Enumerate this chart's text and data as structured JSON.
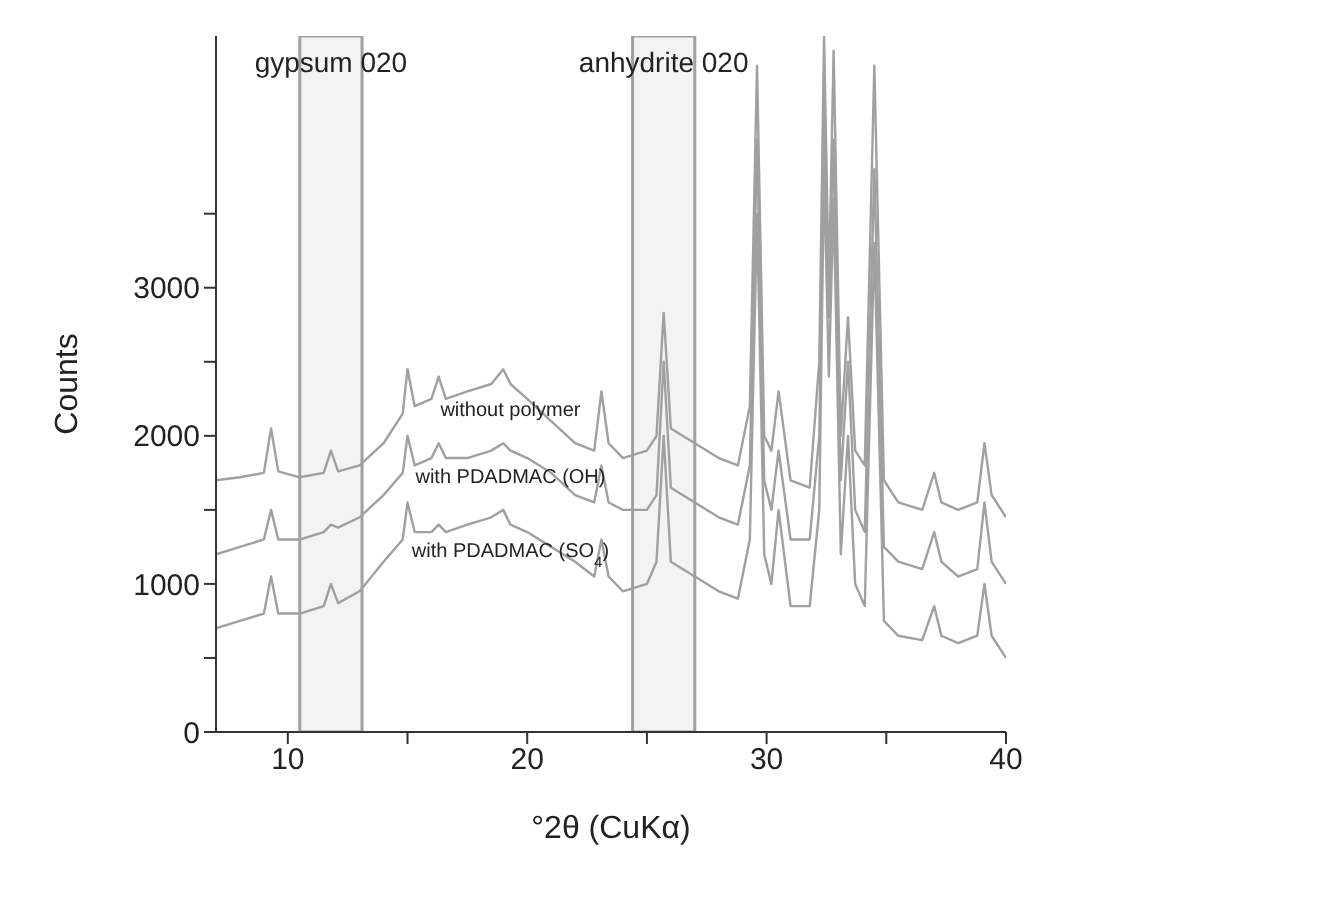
{
  "chart_data": {
    "type": "line",
    "xlabel": "°2θ (CuKα)",
    "ylabel": "Counts",
    "x": [
      7,
      8,
      9,
      9.3,
      9.6,
      10.5,
      11.5,
      11.8,
      12.1,
      13,
      14,
      14.8,
      15,
      15.3,
      16,
      16.3,
      16.6,
      17.5,
      18.5,
      19,
      19.3,
      20,
      21,
      22,
      22.8,
      23.1,
      23.4,
      24,
      25,
      25.4,
      25.7,
      26,
      27,
      28,
      28.8,
      29.3,
      29.6,
      29.9,
      30.2,
      30.5,
      31,
      31.8,
      32.2,
      32.4,
      32.6,
      32.8,
      33.1,
      33.4,
      33.7,
      34.1,
      34.5,
      34.9,
      35.5,
      36.5,
      37,
      37.3,
      38,
      38.8,
      39.1,
      39.4,
      40
    ],
    "series": [
      {
        "name": "without polymer",
        "color": "#a0a0a0",
        "values": [
          1700,
          1720,
          1750,
          2050,
          1760,
          1720,
          1750,
          1900,
          1760,
          1800,
          1950,
          2150,
          2450,
          2200,
          2250,
          2400,
          2250,
          2300,
          2350,
          2450,
          2350,
          2250,
          2100,
          1950,
          1900,
          2300,
          1950,
          1850,
          1900,
          2000,
          2830,
          2050,
          1950,
          1850,
          1800,
          2200,
          4500,
          2000,
          1900,
          2300,
          1700,
          1650,
          2500,
          4700,
          3000,
          4600,
          2000,
          2800,
          1900,
          1800,
          4500,
          1700,
          1550,
          1500,
          1750,
          1550,
          1500,
          1550,
          1950,
          1600,
          1450
        ]
      },
      {
        "name": "with PDADMAC (OH)",
        "color": "#a0a0a0",
        "values": [
          1200,
          1250,
          1300,
          1500,
          1300,
          1300,
          1350,
          1400,
          1380,
          1450,
          1600,
          1750,
          2000,
          1800,
          1850,
          1950,
          1850,
          1850,
          1900,
          1950,
          1900,
          1850,
          1750,
          1600,
          1550,
          1800,
          1550,
          1500,
          1500,
          1600,
          2500,
          1650,
          1550,
          1450,
          1400,
          1800,
          4000,
          1700,
          1500,
          1900,
          1300,
          1300,
          2000,
          4200,
          2800,
          4000,
          1700,
          2500,
          1500,
          1350,
          3800,
          1250,
          1150,
          1100,
          1350,
          1150,
          1050,
          1100,
          1550,
          1150,
          1000
        ]
      },
      {
        "name": "with PDADMAC (SO$_{4}$)",
        "color": "#a0a0a0",
        "values": [
          700,
          750,
          800,
          1050,
          800,
          800,
          850,
          1000,
          870,
          950,
          1150,
          1300,
          1550,
          1350,
          1350,
          1400,
          1350,
          1400,
          1450,
          1500,
          1400,
          1350,
          1250,
          1150,
          1050,
          1300,
          1050,
          950,
          1000,
          1150,
          2000,
          1150,
          1050,
          950,
          900,
          1300,
          3500,
          1200,
          1000,
          1500,
          850,
          850,
          1500,
          3800,
          2400,
          3600,
          1200,
          2000,
          1000,
          850,
          3300,
          750,
          650,
          620,
          850,
          650,
          600,
          650,
          1000,
          650,
          500
        ]
      }
    ],
    "xlim": [
      7,
      40
    ],
    "xticks": [
      10,
      {
        "value": 15,
        "label": null
      },
      20,
      {
        "value": 25,
        "label": null
      },
      30,
      {
        "value": 35,
        "label": null
      },
      40
    ],
    "ylim": [
      0,
      4700
    ],
    "yticks": [
      0,
      {
        "value": 500,
        "label": null
      },
      1000,
      {
        "value": 1500,
        "label": null
      },
      2000,
      {
        "value": 2500,
        "label": null
      },
      3000,
      {
        "value": 3500,
        "label": null
      }
    ],
    "bands": [
      {
        "axis": "x",
        "from": 10.5,
        "to": 13.1,
        "label": "gypsum 020",
        "color": "#a0a0a0"
      },
      {
        "axis": "x",
        "from": 24.4,
        "to": 27,
        "label": "anhydrite 020",
        "color": "#a0a0a0"
      }
    ],
    "grid": false,
    "legend": false,
    "marker": "none",
    "line_style": "solid"
  }
}
